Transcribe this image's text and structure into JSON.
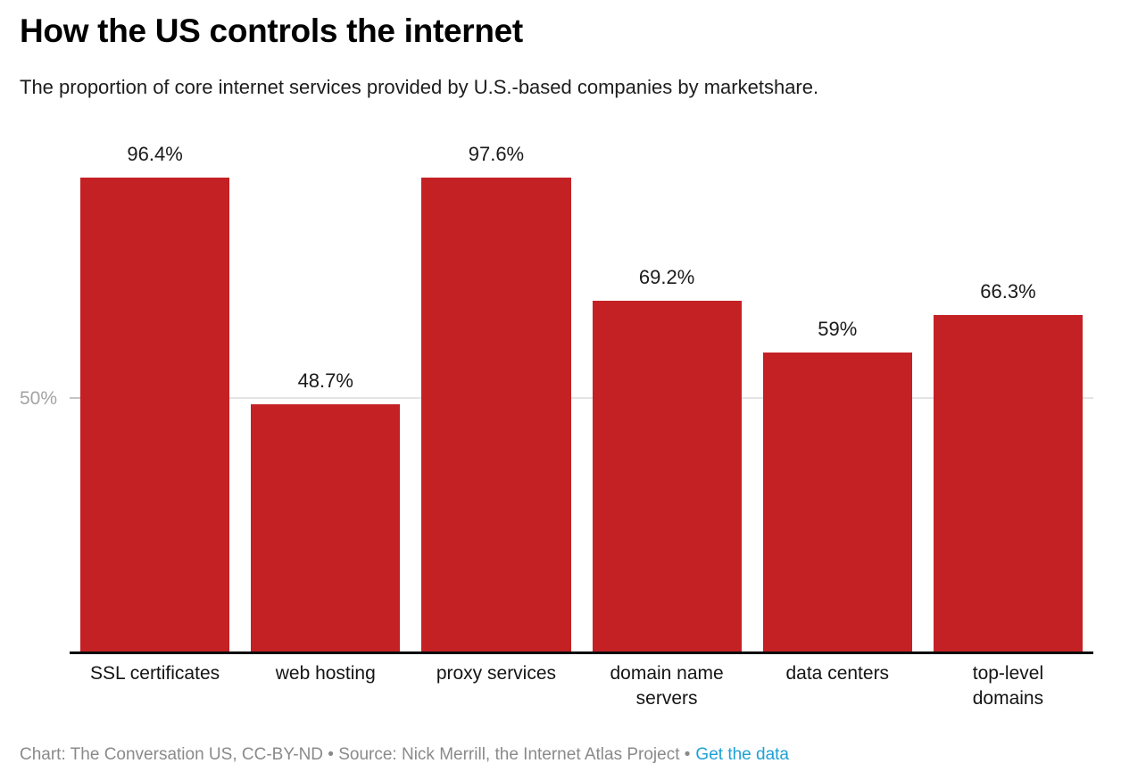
{
  "header": {
    "title": "How the US controls the internet",
    "subtitle": "The proportion of core internet services provided by U.S.-based companies by marketshare."
  },
  "chart_data": {
    "type": "bar",
    "categories": [
      "SSL certificates",
      "web hosting",
      "proxy services",
      "domain name servers",
      "data centers",
      "top-level domains"
    ],
    "values": [
      96.4,
      48.7,
      97.6,
      69.2,
      59,
      66.3
    ],
    "value_labels": [
      "96.4%",
      "48.7%",
      "97.6%",
      "69.2%",
      "59%",
      "66.3%"
    ],
    "title": "How the US controls the internet",
    "xlabel": "",
    "ylabel": "",
    "ylim": [
      0,
      100
    ],
    "y_ticks": [
      {
        "value": 50,
        "label": "50%"
      }
    ],
    "grid": "single horizontal gridline at 50%, bars drawn above it",
    "legend": "none",
    "bar_color": "#c42125"
  },
  "colors": {
    "bar": "#c42125",
    "gridline": "#e4e4e4",
    "baseline": "#0b0b0b",
    "y_tick_label": "#a3a3a3",
    "footer_text": "#8a8a8a",
    "link": "#1ea0d6"
  },
  "footer": {
    "credit": "Chart: The Conversation US, CC-BY-ND • Source: Nick Merrill, the Internet Atlas Project •",
    "link_label": "Get the data"
  }
}
